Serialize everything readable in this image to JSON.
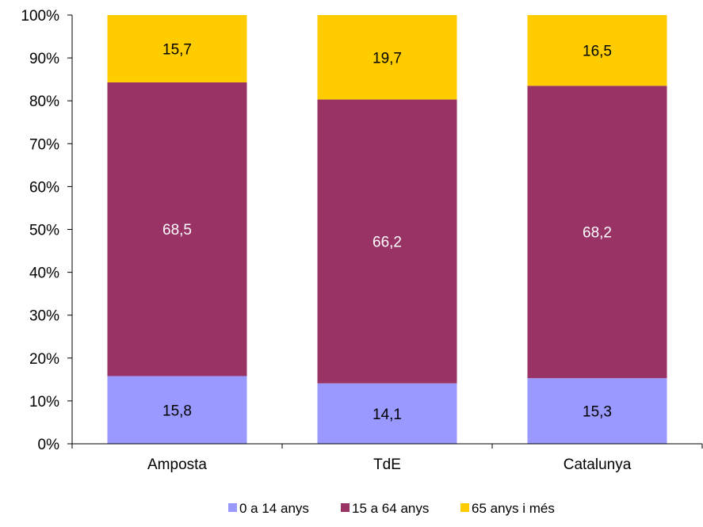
{
  "chart_data": {
    "type": "bar",
    "stacked": true,
    "percent_stacked": true,
    "categories": [
      "Amposta",
      "TdE",
      "Catalunya"
    ],
    "series": [
      {
        "name": "0 a 14 anys",
        "color": "#9999FF",
        "values": [
          15.8,
          14.1,
          15.3
        ],
        "labels": [
          "15,8",
          "14,1",
          "15,3"
        ]
      },
      {
        "name": "15 a 64 anys",
        "color": "#993366",
        "values": [
          68.5,
          66.2,
          68.2
        ],
        "labels": [
          "68,5",
          "66,2",
          "68,2"
        ]
      },
      {
        "name": "65 anys i més",
        "color": "#FFCC00",
        "values": [
          15.7,
          19.7,
          16.5
        ],
        "labels": [
          "15,7",
          "19,7",
          "16,5"
        ]
      }
    ],
    "label_colors": [
      "#000000",
      "#ffffff",
      "#000000"
    ],
    "yticks": [
      "0%",
      "10%",
      "20%",
      "30%",
      "40%",
      "50%",
      "60%",
      "70%",
      "80%",
      "90%",
      "100%"
    ],
    "ylim": [
      0,
      100
    ],
    "grid": false,
    "legend_position": "bottom"
  }
}
